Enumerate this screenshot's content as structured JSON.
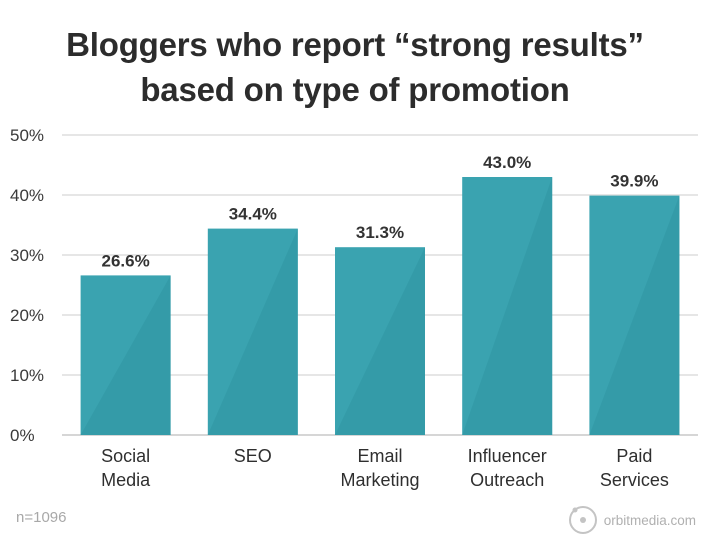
{
  "chart_data": {
    "type": "bar",
    "title_lines": [
      "Bloggers who report “strong results”",
      "based on type of promotion"
    ],
    "categories": [
      [
        "Social",
        "Media"
      ],
      [
        "SEO"
      ],
      [
        "Email",
        "Marketing"
      ],
      [
        "Influencer",
        "Outreach"
      ],
      [
        "Paid",
        "Services"
      ]
    ],
    "values": [
      26.6,
      34.4,
      31.3,
      43.0,
      39.9
    ],
    "data_labels": [
      "26.6%",
      "34.4%",
      "31.3%",
      "43.0%",
      "39.9%"
    ],
    "ylim": [
      0,
      50
    ],
    "yticks": [
      0,
      10,
      20,
      30,
      40,
      50
    ],
    "ytick_labels": [
      "0%",
      "10%",
      "20%",
      "30%",
      "40%",
      "50%"
    ],
    "grid": true,
    "legend": "none",
    "bar_color": "#3aa3b0",
    "bar_shade_color": "#2f96a3"
  },
  "footnote": "n=1096",
  "brand": {
    "text": "orbitmedia.com",
    "icon": "orbit-logo-icon"
  }
}
